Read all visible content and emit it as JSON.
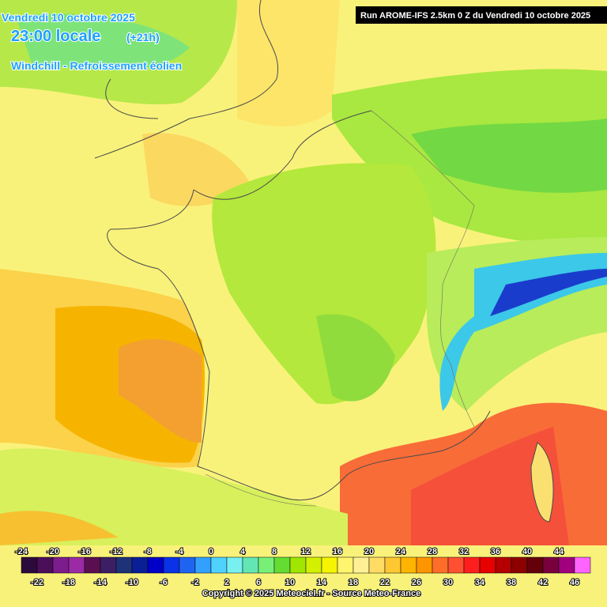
{
  "header": {
    "date": "Vendredi 10 octobre 2025",
    "time": "23:00 locale",
    "lead": "(+21h)",
    "parameter": "Windchill - Refroissement éolien",
    "run": "Run AROME-IFS 2.5km 0 Z du Vendredi 10 octobre 2025"
  },
  "colorbar": {
    "top_labels": [
      -24,
      -20,
      -16,
      -12,
      -8,
      -4,
      0,
      4,
      8,
      12,
      16,
      20,
      24,
      28,
      32,
      36,
      40,
      44
    ],
    "bottom_labels": [
      -22,
      -18,
      -14,
      -10,
      -6,
      -2,
      2,
      6,
      10,
      14,
      18,
      22,
      26,
      30,
      34,
      38,
      42,
      46
    ],
    "colors": [
      "#2d0a3c",
      "#4b0f5a",
      "#7d1c8c",
      "#9b2aa5",
      "#5a1050",
      "#3c1e64",
      "#1e3278",
      "#0a1e96",
      "#0000c8",
      "#0a32e6",
      "#1e64f0",
      "#32a0ff",
      "#50d2ff",
      "#78f0f0",
      "#64e6b4",
      "#78f078",
      "#64dc32",
      "#a0e600",
      "#d2f000",
      "#f5f500",
      "#fff56e",
      "#fff096",
      "#ffdc64",
      "#ffc832",
      "#ffb400",
      "#ff9600",
      "#ff6e28",
      "#ff5032",
      "#ff1e1e",
      "#e60000",
      "#b40000",
      "#8c0000",
      "#64000a",
      "#78003c",
      "#a0007d",
      "#ff64ff"
    ]
  },
  "footer": {
    "copyright": "Copyright © 2025 Meteociel.fr - Source Meteo-France"
  }
}
